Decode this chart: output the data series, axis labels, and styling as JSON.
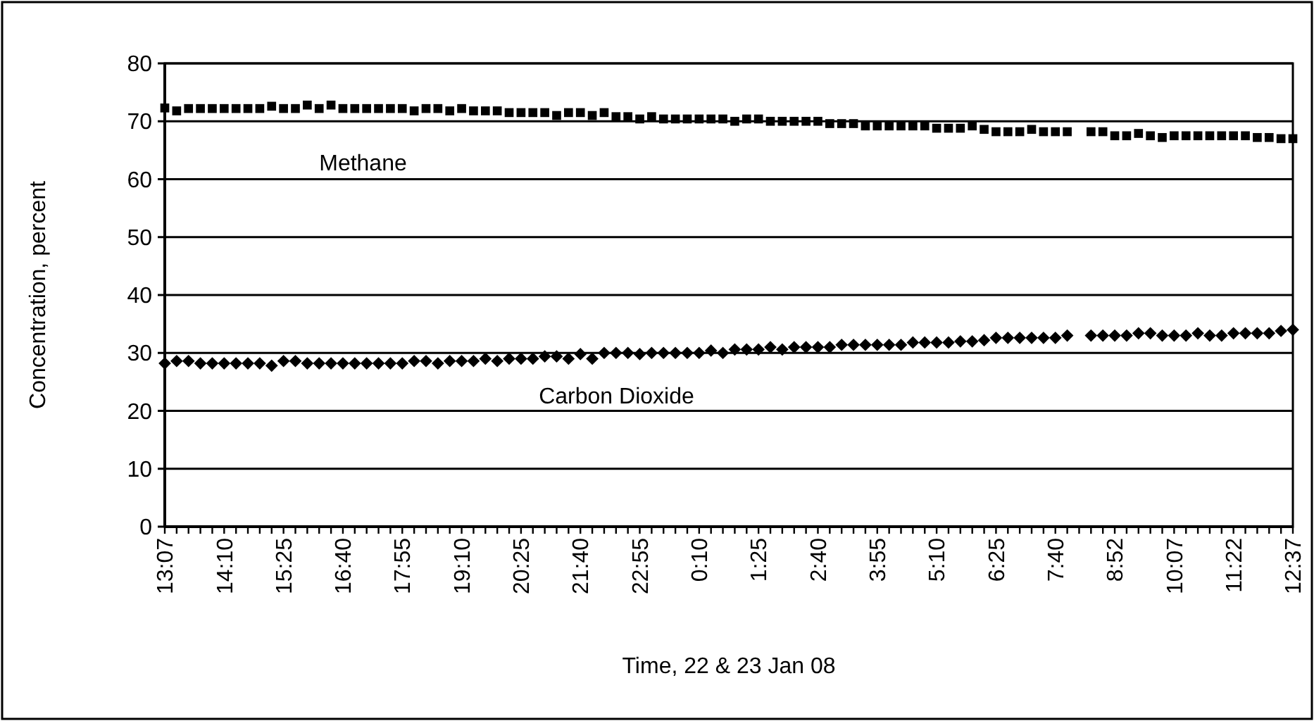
{
  "chart_data": {
    "type": "scatter",
    "xlabel": "Time, 22 & 23 Jan 08",
    "ylabel": "Concentration, percent",
    "categories": [
      "13:07",
      null,
      null,
      null,
      null,
      "14:10",
      null,
      null,
      null,
      null,
      "15:25",
      null,
      null,
      null,
      null,
      "16:40",
      null,
      null,
      null,
      null,
      "17:55",
      null,
      null,
      null,
      null,
      "19:10",
      null,
      null,
      null,
      null,
      "20:25",
      null,
      null,
      null,
      null,
      "21:40",
      null,
      null,
      null,
      null,
      "22:55",
      null,
      null,
      null,
      null,
      "0:10",
      null,
      null,
      null,
      null,
      "1:25",
      null,
      null,
      null,
      null,
      "2:40",
      null,
      null,
      null,
      null,
      "3:55",
      null,
      null,
      null,
      null,
      "5:10",
      null,
      null,
      null,
      null,
      "6:25",
      null,
      null,
      null,
      null,
      "7:40",
      null,
      null,
      null,
      null,
      "8:52",
      null,
      null,
      null,
      null,
      "10:07",
      null,
      null,
      null,
      null,
      "11:22",
      null,
      null,
      null,
      null,
      "12:37"
    ],
    "series": [
      {
        "name": "Methane",
        "color": "#000000",
        "marker": "square",
        "values": [
          72.3,
          71.8,
          72.2,
          72.2,
          72.2,
          72.2,
          72.2,
          72.2,
          72.2,
          72.6,
          72.2,
          72.2,
          72.8,
          72.2,
          72.8,
          72.2,
          72.2,
          72.2,
          72.2,
          72.2,
          72.2,
          71.8,
          72.2,
          72.2,
          71.8,
          72.2,
          71.8,
          71.8,
          71.8,
          71.5,
          71.5,
          71.5,
          71.5,
          71.0,
          71.5,
          71.5,
          71.0,
          71.5,
          70.8,
          70.8,
          70.4,
          70.8,
          70.4,
          70.4,
          70.4,
          70.4,
          70.4,
          70.4,
          70.0,
          70.4,
          70.4,
          70.0,
          70.0,
          70.0,
          70.0,
          70.0,
          69.6,
          69.6,
          69.6,
          69.2,
          69.2,
          69.2,
          69.2,
          69.2,
          69.2,
          68.8,
          68.8,
          68.8,
          69.2,
          68.6,
          68.2,
          68.2,
          68.2,
          68.6,
          68.2,
          68.2,
          68.2,
          null,
          68.2,
          68.2,
          67.5,
          67.5,
          67.9,
          67.5,
          67.2,
          67.5,
          67.5,
          67.5,
          67.5,
          67.5,
          67.5,
          67.5,
          67.2,
          67.2,
          67.0,
          67.0
        ]
      },
      {
        "name": "Carbon Dioxide",
        "color": "#000000",
        "marker": "diamond",
        "values": [
          28.2,
          28.6,
          28.6,
          28.2,
          28.2,
          28.2,
          28.2,
          28.2,
          28.2,
          27.8,
          28.6,
          28.6,
          28.2,
          28.2,
          28.2,
          28.2,
          28.2,
          28.2,
          28.2,
          28.2,
          28.2,
          28.6,
          28.6,
          28.2,
          28.6,
          28.6,
          28.6,
          29.0,
          28.6,
          29.0,
          29.0,
          29.0,
          29.4,
          29.4,
          29.0,
          29.8,
          29.0,
          30.0,
          30.0,
          30.0,
          29.8,
          30.0,
          30.0,
          30.0,
          30.0,
          30.0,
          30.4,
          30.0,
          30.6,
          30.6,
          30.6,
          31.0,
          30.6,
          31.0,
          31.0,
          31.0,
          31.0,
          31.4,
          31.4,
          31.4,
          31.4,
          31.4,
          31.4,
          31.8,
          31.8,
          31.8,
          31.8,
          32.0,
          32.0,
          32.2,
          32.6,
          32.6,
          32.6,
          32.6,
          32.6,
          32.6,
          33.0,
          null,
          33.0,
          33.0,
          33.0,
          33.0,
          33.4,
          33.4,
          33.0,
          33.0,
          33.0,
          33.4,
          33.0,
          33.0,
          33.4,
          33.4,
          33.4,
          33.4,
          33.8,
          34.0
        ]
      }
    ],
    "ylim": [
      0,
      80
    ],
    "yticks": [
      0,
      10,
      20,
      30,
      40,
      50,
      60,
      70,
      80
    ],
    "grid": "y"
  }
}
